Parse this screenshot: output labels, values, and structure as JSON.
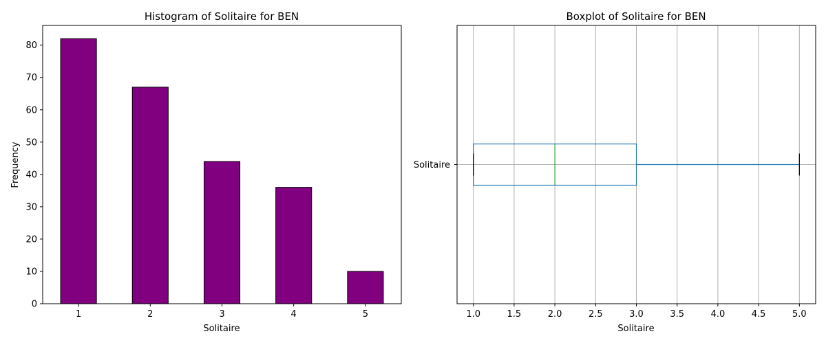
{
  "chart_data": [
    {
      "type": "bar",
      "title": "Histogram of Solitaire for BEN",
      "xlabel": "Solitaire",
      "ylabel": "Frequency",
      "categories": [
        "1",
        "2",
        "3",
        "4",
        "5"
      ],
      "values": [
        82,
        67,
        44,
        36,
        10
      ],
      "ylim": [
        0,
        86.1
      ],
      "yticks": [
        0,
        10,
        20,
        30,
        40,
        50,
        60,
        70,
        80
      ],
      "bar_color": "#800080",
      "edge_color": "#000000",
      "grid": false
    },
    {
      "type": "boxplot",
      "title": "Boxplot of Solitaire for BEN",
      "xlabel": "Solitaire",
      "orientation": "horizontal",
      "category": "Solitaire",
      "whisker_low": 1.0,
      "q1": 1.0,
      "median": 2.0,
      "q3": 3.0,
      "whisker_high": 5.0,
      "xlim": [
        0.8,
        5.2
      ],
      "xticks": [
        "1.0",
        "1.5",
        "2.0",
        "2.5",
        "3.0",
        "3.5",
        "4.0",
        "4.5",
        "5.0"
      ],
      "box_color": "#1f77b4",
      "median_color": "#2ca02c",
      "cap_color": "#000000",
      "grid": true
    }
  ]
}
